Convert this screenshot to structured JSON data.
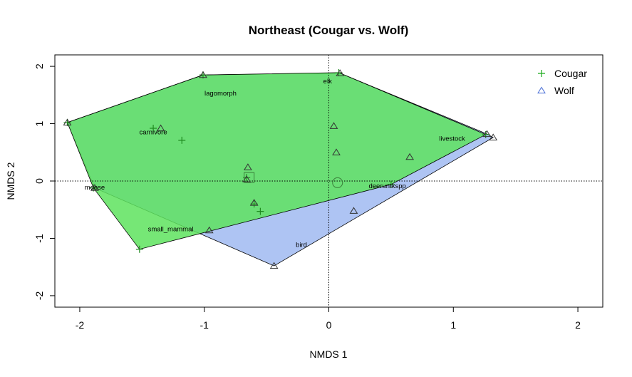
{
  "chart_data": {
    "type": "scatter",
    "title": "Northeast (Cougar vs. Wolf)",
    "xlabel": "NMDS 1",
    "ylabel": "NMDS 2",
    "xlim": [
      -2.2,
      2.2
    ],
    "ylim": [
      -2.2,
      2.2
    ],
    "xticks": [
      -2,
      -1,
      0,
      1,
      2
    ],
    "yticks": [
      -2,
      -1,
      0,
      1,
      2
    ],
    "reference_lines": {
      "x": 0,
      "y": 0,
      "style": "dotted"
    },
    "legend": {
      "position": "top-right",
      "entries": [
        {
          "name": "Cougar",
          "marker": "plus",
          "color": "#1aab1a"
        },
        {
          "name": "Wolf",
          "marker": "triangle",
          "color": "#4a6fd6"
        }
      ]
    },
    "series": [
      {
        "name": "Cougar",
        "marker": "plus",
        "color": "#1aab1a",
        "hull_fill": "#5ee35e",
        "points": [
          {
            "x": -2.1,
            "y": 1.02
          },
          {
            "x": -1.01,
            "y": 1.85
          },
          {
            "x": 0.08,
            "y": 1.89
          },
          {
            "x": 0.5,
            "y": -0.06
          },
          {
            "x": -1.52,
            "y": -1.19
          },
          {
            "x": -1.89,
            "y": -0.12
          },
          {
            "x": -1.18,
            "y": 0.71
          },
          {
            "x": -1.41,
            "y": 0.92
          },
          {
            "x": -0.6,
            "y": -0.4
          },
          {
            "x": -0.55,
            "y": -0.53
          },
          {
            "x": -0.66,
            "y": 0.06
          },
          {
            "x": 1.26,
            "y": 0.81
          }
        ],
        "centroid": {
          "x": -0.64,
          "y": 0.06
        }
      },
      {
        "name": "Wolf",
        "marker": "triangle",
        "color": "#4a6fd6",
        "hull_fill": "#aec4f3",
        "points": [
          {
            "x": -2.1,
            "y": 1.02
          },
          {
            "x": -1.01,
            "y": 1.85
          },
          {
            "x": 0.09,
            "y": 1.88
          },
          {
            "x": 1.27,
            "y": 0.82
          },
          {
            "x": 1.32,
            "y": 0.76
          },
          {
            "x": -0.44,
            "y": -1.48
          },
          {
            "x": -1.88,
            "y": -0.12
          },
          {
            "x": 0.2,
            "y": -0.52
          },
          {
            "x": 0.04,
            "y": 0.96
          },
          {
            "x": 0.06,
            "y": 0.5
          },
          {
            "x": 0.65,
            "y": 0.42
          },
          {
            "x": -0.65,
            "y": 0.24
          },
          {
            "x": -0.66,
            "y": 0.03
          },
          {
            "x": -0.96,
            "y": -0.86
          },
          {
            "x": -0.6,
            "y": -0.38
          },
          {
            "x": -1.35,
            "y": 0.92
          }
        ],
        "centroid": {
          "x": 0.07,
          "y": -0.03
        }
      }
    ],
    "species_labels": [
      {
        "text": "elk",
        "x": -0.01,
        "y": 1.74
      },
      {
        "text": "lagomorph",
        "x": -0.87,
        "y": 1.53
      },
      {
        "text": "carnivore",
        "x": -1.41,
        "y": 0.85
      },
      {
        "text": "livestock",
        "x": 0.99,
        "y": 0.74
      },
      {
        "text": "moose",
        "x": -1.88,
        "y": -0.11
      },
      {
        "text": "deeruntkspp",
        "x": 0.47,
        "y": -0.09
      },
      {
        "text": "small_mammal",
        "x": -1.27,
        "y": -0.84
      },
      {
        "text": "bird",
        "x": -0.22,
        "y": -1.11
      }
    ]
  }
}
